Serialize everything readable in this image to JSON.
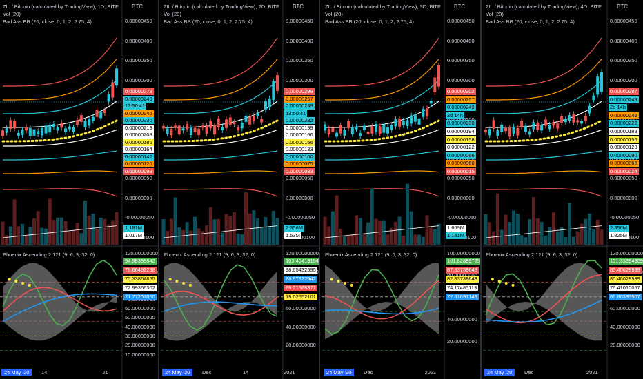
{
  "colors": {
    "accent": "#2962ff",
    "up": "#26c6da",
    "down": "#ef5350",
    "bgwhite": "#ffffff"
  },
  "charts": [
    {
      "title": "ZIL / Bitcoin (calculated by TradingView), 1D, BITF",
      "currency": "BTC",
      "vol": "Vol (20)",
      "bb": "Bad Ass BB (20, close, 0, 1, 2, 2.75, 4)",
      "osc": "Phoenix Ascending 2.121 (9, 6, 3, 32, 0)",
      "date": "24 May '20",
      "xlabels": [
        "14",
        "21"
      ],
      "axis_price": [
        "0.00000450",
        "0.00000400",
        "0.00000350",
        "0.00000300",
        "0.00000250",
        "0.00000200",
        "0.00000150",
        "0.00000100",
        "0.00000050",
        "0.00000000",
        "-0.00000050",
        "-0.00000100"
      ],
      "axis_osc": [
        "120.00000000",
        "110.00000000",
        "100.00000000",
        "90.00000000",
        "80.00000000",
        "70.00000000",
        "60.00000000",
        "50.00000000",
        "40.00000000",
        "30.00000000",
        "20.00000000",
        "10.00000000"
      ],
      "price_badges": [
        {
          "text": "0.00000273",
          "bg": "#ef5350",
          "fg": "#ffffff"
        },
        {
          "text": "0.00000249",
          "bg": "#26c6da",
          "fg": "#000000"
        },
        {
          "text": "13:50:41",
          "bg": "#26c6da",
          "fg": "#000000"
        },
        {
          "text": "0.00000246",
          "bg": "#ff9800",
          "fg": "#000000"
        },
        {
          "text": "0.00000230",
          "bg": "#26c6da",
          "fg": "#000000"
        },
        {
          "text": "0.00000219",
          "bg": "#ffffff",
          "fg": "#000000"
        },
        {
          "text": "0.00000208",
          "bg": "#ffffff",
          "fg": "#000000"
        },
        {
          "text": "0.00000186",
          "bg": "#ffeb3b",
          "fg": "#000000"
        },
        {
          "text": "0.00000164",
          "bg": "#ffffff",
          "fg": "#000000"
        },
        {
          "text": "0.00000142",
          "bg": "#26c6da",
          "fg": "#000000"
        },
        {
          "text": "0.00000126",
          "bg": "#ff9800",
          "fg": "#000000"
        },
        {
          "text": "0.00000099",
          "bg": "#ef5350",
          "fg": "#ffffff"
        }
      ],
      "vol_badges": [
        {
          "text": "1.181M",
          "bg": "#26c6da",
          "fg": "#000000"
        },
        {
          "text": "1.017M",
          "bg": "#ffffff",
          "fg": "#000000"
        }
      ],
      "osc_badges": [
        {
          "text": "94.98399842",
          "bg": "#4caf50",
          "fg": "#ffffff"
        },
        {
          "text": "79.66492238",
          "bg": "#ef5350",
          "fg": "#ffffff"
        },
        {
          "text": "75.33864855",
          "bg": "#ffeb3b",
          "fg": "#000000"
        },
        {
          "text": "72.99366302",
          "bg": "#ffffff",
          "fg": "#000000"
        },
        {
          "text": "71.77207050",
          "bg": "#2196f3",
          "fg": "#ffffff"
        }
      ]
    },
    {
      "title": "ZIL / Bitcoin (calculated by TradingView), 2D, BITF",
      "currency": "BTC",
      "vol": "Vol (20)",
      "bb": "Bad Ass BB (20, close, 0, 1, 2, 2.75, 4)",
      "osc": "Phoenix Ascending 2.121 (9, 6, 3, 32, 0)",
      "date": "24 May '20",
      "xlabels": [
        "Dec",
        "14",
        "2021"
      ],
      "axis_price": [
        "0.00000450",
        "0.00000400",
        "0.00000350",
        "0.00000300",
        "0.00000250",
        "0.00000200",
        "0.00000150",
        "0.00000100",
        "0.00000050",
        "0.00000000",
        "-0.00000050",
        "-0.00000100"
      ],
      "axis_osc": [
        "120.00000000",
        "100.00000000",
        "80.00000000",
        "60.00000000",
        "40.00000000",
        "20.00000000"
      ],
      "price_badges": [
        {
          "text": "0.00000299",
          "bg": "#ef5350",
          "fg": "#ffffff"
        },
        {
          "text": "0.00000257",
          "bg": "#ff9800",
          "fg": "#000000"
        },
        {
          "text": "0.00000249",
          "bg": "#26c6da",
          "fg": "#000000"
        },
        {
          "text": "13:50:41",
          "bg": "#26c6da",
          "fg": "#000000"
        },
        {
          "text": "0.00000232",
          "bg": "#26c6da",
          "fg": "#000000"
        },
        {
          "text": "0.00000199",
          "bg": "#ffffff",
          "fg": "#000000"
        },
        {
          "text": "0.00000166",
          "bg": "#ffffff",
          "fg": "#000000"
        },
        {
          "text": "0.00000156",
          "bg": "#ffeb3b",
          "fg": "#000000"
        },
        {
          "text": "0.00000133",
          "bg": "#ffffff",
          "fg": "#000000"
        },
        {
          "text": "0.00000100",
          "bg": "#26c6da",
          "fg": "#000000"
        },
        {
          "text": "0.00000075",
          "bg": "#ff9800",
          "fg": "#000000"
        },
        {
          "text": "0.00000033",
          "bg": "#ef5350",
          "fg": "#ffffff"
        }
      ],
      "vol_badges": [
        {
          "text": "2.356M",
          "bg": "#26c6da",
          "fg": "#000000"
        },
        {
          "text": "1.53M",
          "bg": "#ffffff",
          "fg": "#000000"
        }
      ],
      "osc_badges": [
        {
          "text": "103.40413194",
          "bg": "#4caf50",
          "fg": "#ffffff"
        },
        {
          "text": "98.65432595",
          "bg": "#ffffff",
          "fg": "#000000"
        },
        {
          "text": "86.97922542",
          "bg": "#2196f3",
          "fg": "#ffffff"
        },
        {
          "text": "69.21688371",
          "bg": "#ef5350",
          "fg": "#ffffff"
        },
        {
          "text": "19.02652101",
          "bg": "#ffeb3b",
          "fg": "#000000"
        }
      ]
    },
    {
      "title": "ZIL / Bitcoin (calculated by TradingView), 3D, BITF",
      "currency": "BTC",
      "vol": "Vol (20)",
      "bb": "Bad Ass BB (20, close, 0, 1, 2, 2.75, 4)",
      "osc": "Phoenix Ascending 2.121 (9, 6, 3, 32, 0)",
      "date": "24 May '20",
      "xlabels": [
        "Dec",
        "2021"
      ],
      "axis_price": [
        "0.00000450",
        "0.00000400",
        "0.00000350",
        "0.00000300",
        "0.00000250",
        "0.00000200",
        "0.00000150",
        "0.00000100",
        "0.00000050",
        "0.00000000",
        "-0.00000050",
        "-0.00000100"
      ],
      "axis_osc": [
        "100.00000000",
        "80.00000000",
        "60.00000000",
        "40.00000000",
        "20.00000000"
      ],
      "price_badges": [
        {
          "text": "0.00000302",
          "bg": "#ef5350",
          "fg": "#ffffff"
        },
        {
          "text": "0.00000257",
          "bg": "#ff9800",
          "fg": "#000000"
        },
        {
          "text": "0.00000249",
          "bg": "#26c6da",
          "fg": "#000000"
        },
        {
          "text": "2d 14h",
          "bg": "#26c6da",
          "fg": "#000000"
        },
        {
          "text": "0.00000230",
          "bg": "#26c6da",
          "fg": "#000000"
        },
        {
          "text": "0.00000194",
          "bg": "#ffffff",
          "fg": "#000000"
        },
        {
          "text": "0.00000158",
          "bg": "#ffeb3b",
          "fg": "#000000"
        },
        {
          "text": "0.00000122",
          "bg": "#ffffff",
          "fg": "#000000"
        },
        {
          "text": "0.00000086",
          "bg": "#26c6da",
          "fg": "#000000"
        },
        {
          "text": "0.00000060",
          "bg": "#ff9800",
          "fg": "#000000"
        },
        {
          "text": "0.00000015",
          "bg": "#ef5350",
          "fg": "#ffffff"
        }
      ],
      "vol_badges": [
        {
          "text": "1.659M",
          "bg": "#ffffff",
          "fg": "#000000"
        },
        {
          "text": "1.181M",
          "bg": "#26c6da",
          "fg": "#000000"
        }
      ],
      "osc_badges": [
        {
          "text": "101.82899725",
          "bg": "#4caf50",
          "fg": "#ffffff"
        },
        {
          "text": "87.83738648",
          "bg": "#ef5350",
          "fg": "#ffffff"
        },
        {
          "text": "82.83738648",
          "bg": "#ffeb3b",
          "fg": "#000000"
        },
        {
          "text": "74.17485113",
          "bg": "#ffffff",
          "fg": "#000000"
        },
        {
          "text": "72.31697148",
          "bg": "#2196f3",
          "fg": "#ffffff"
        }
      ]
    },
    {
      "title": "ZIL / Bitcoin (calculated by TradingView), 4D, BITF",
      "currency": "BTC",
      "vol": "Vol (20)",
      "bb": "Bad Ass BB (20, close, 0, 1, 2, 2.75, 4)",
      "osc": "Phoenix Ascending 2.121 (9, 6, 3, 32, 0)",
      "date": "24 May '20",
      "xlabels": [
        "Dec",
        "2021"
      ],
      "axis_price": [
        "0.00000450",
        "0.00000400",
        "0.00000350",
        "0.00000300",
        "0.00000250",
        "0.00000200",
        "0.00000150",
        "0.00000100",
        "0.00000050",
        "0.00000000",
        "-0.00000050",
        "-0.00000100"
      ],
      "axis_osc": [
        "120.00000000",
        "100.00000000",
        "80.00000000",
        "60.00000000",
        "40.00000000",
        "20.00000000"
      ],
      "price_badges": [
        {
          "text": "0.00000287",
          "bg": "#ef5350",
          "fg": "#ffffff"
        },
        {
          "text": "0.00000249",
          "bg": "#26c6da",
          "fg": "#000000"
        },
        {
          "text": "2d 14h",
          "bg": "#26c6da",
          "fg": "#000000"
        },
        {
          "text": "0.00000246",
          "bg": "#ff9800",
          "fg": "#000000"
        },
        {
          "text": "0.00000222",
          "bg": "#26c6da",
          "fg": "#000000"
        },
        {
          "text": "0.00000189",
          "bg": "#ffffff",
          "fg": "#000000"
        },
        {
          "text": "0.00000156",
          "bg": "#ffeb3b",
          "fg": "#000000"
        },
        {
          "text": "0.00000123",
          "bg": "#ffffff",
          "fg": "#000000"
        },
        {
          "text": "0.00000090",
          "bg": "#26c6da",
          "fg": "#000000"
        },
        {
          "text": "0.00000066",
          "bg": "#ff9800",
          "fg": "#000000"
        },
        {
          "text": "0.00000024",
          "bg": "#ef5350",
          "fg": "#ffffff"
        }
      ],
      "vol_badges": [
        {
          "text": "2.356M",
          "bg": "#26c6da",
          "fg": "#000000"
        },
        {
          "text": "1.825M",
          "bg": "#ffffff",
          "fg": "#000000"
        }
      ],
      "osc_badges": [
        {
          "text": "101.33284309",
          "bg": "#4caf50",
          "fg": "#ffffff"
        },
        {
          "text": "85.40028939",
          "bg": "#ef5350",
          "fg": "#ffffff"
        },
        {
          "text": "80.40028939",
          "bg": "#ffeb3b",
          "fg": "#000000"
        },
        {
          "text": "76.41010057",
          "bg": "#ffffff",
          "fg": "#000000"
        },
        {
          "text": "66.80333507",
          "bg": "#2196f3",
          "fg": "#ffffff"
        }
      ]
    }
  ]
}
